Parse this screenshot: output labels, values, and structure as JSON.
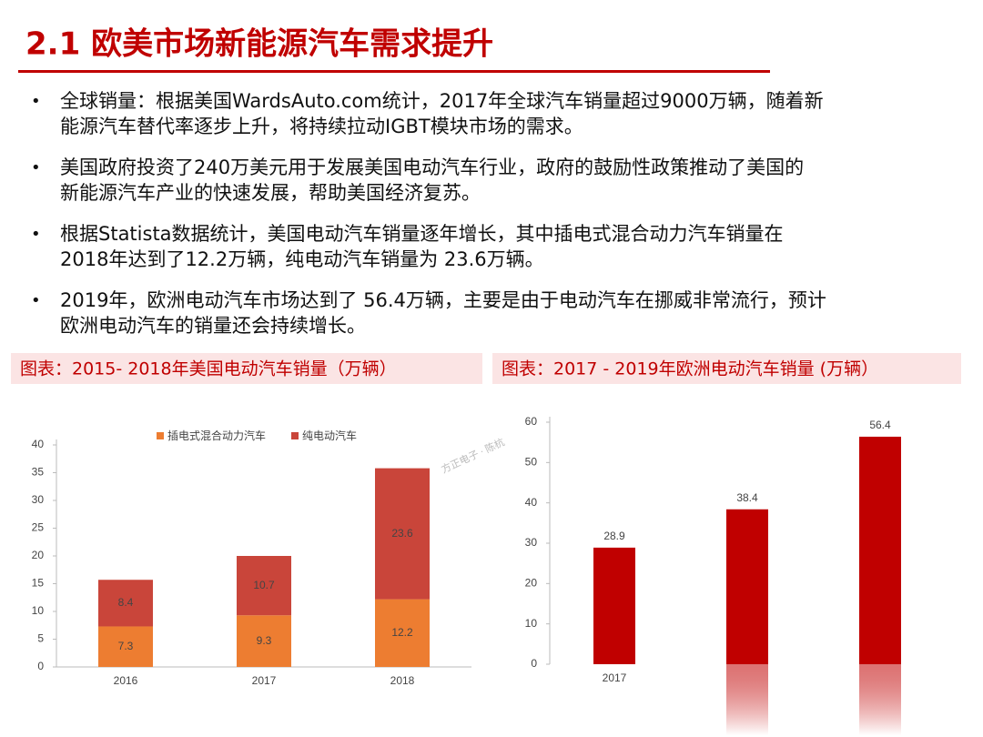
{
  "title": "2.1 欧美市场新能源汽车需求提升",
  "bullets": [
    [
      "全球销量：根据美国WardsAuto.com统计，2017年全球汽车销量超过9000万辆，随着新",
      "能源汽车替代率逐步上升，将持续拉动IGBT模块市场的需求。"
    ],
    [
      "美国政府投资了240万美元用于发展美国电动汽车行业，政府的鼓励性政策推动了美国的",
      "新能源汽车产业的快速发展，帮助美国经济复苏。"
    ],
    [
      "根据Statista数据统计，美国电动汽车销量逐年增长，其中插电式混合动力汽车销量在",
      "2018年达到了12.2万辆，纯电动汽车销量为 23.6万辆。"
    ],
    [
      "2019年，欧洲电动汽车市场达到了 56.4万辆，主要是由于电动汽车在挪威非常流行，预计",
      "欧洲电动汽车的销量还会持续增长。"
    ]
  ],
  "watermark": "方正电子 · 陈杭",
  "chart_data": [
    {
      "type": "stacked_bar",
      "title": "图表：2015- 2018年美国电动汽车销量（万辆）",
      "categories": [
        "2016",
        "2017",
        "2018"
      ],
      "series": [
        {
          "name": "插电式混合动力汽车",
          "color": "#ed7d31",
          "values": [
            7.3,
            9.3,
            12.2
          ]
        },
        {
          "name": "纯电动汽车",
          "color": "#c9453a",
          "values": [
            8.4,
            10.7,
            23.6
          ]
        }
      ],
      "ylim": [
        0,
        40
      ],
      "yticks": [
        0,
        5,
        10,
        15,
        20,
        25,
        30,
        35,
        40
      ],
      "legend": "top"
    },
    {
      "type": "bar",
      "title": "图表：2017 - 2019年欧洲电动汽车销量 (万辆）",
      "categories": [
        "2017",
        null,
        null
      ],
      "values": [
        28.9,
        38.4,
        56.4
      ],
      "color": "#c00000",
      "ylim": [
        0,
        60
      ],
      "yticks": [
        0,
        10,
        20,
        30,
        40,
        50,
        60
      ]
    }
  ]
}
